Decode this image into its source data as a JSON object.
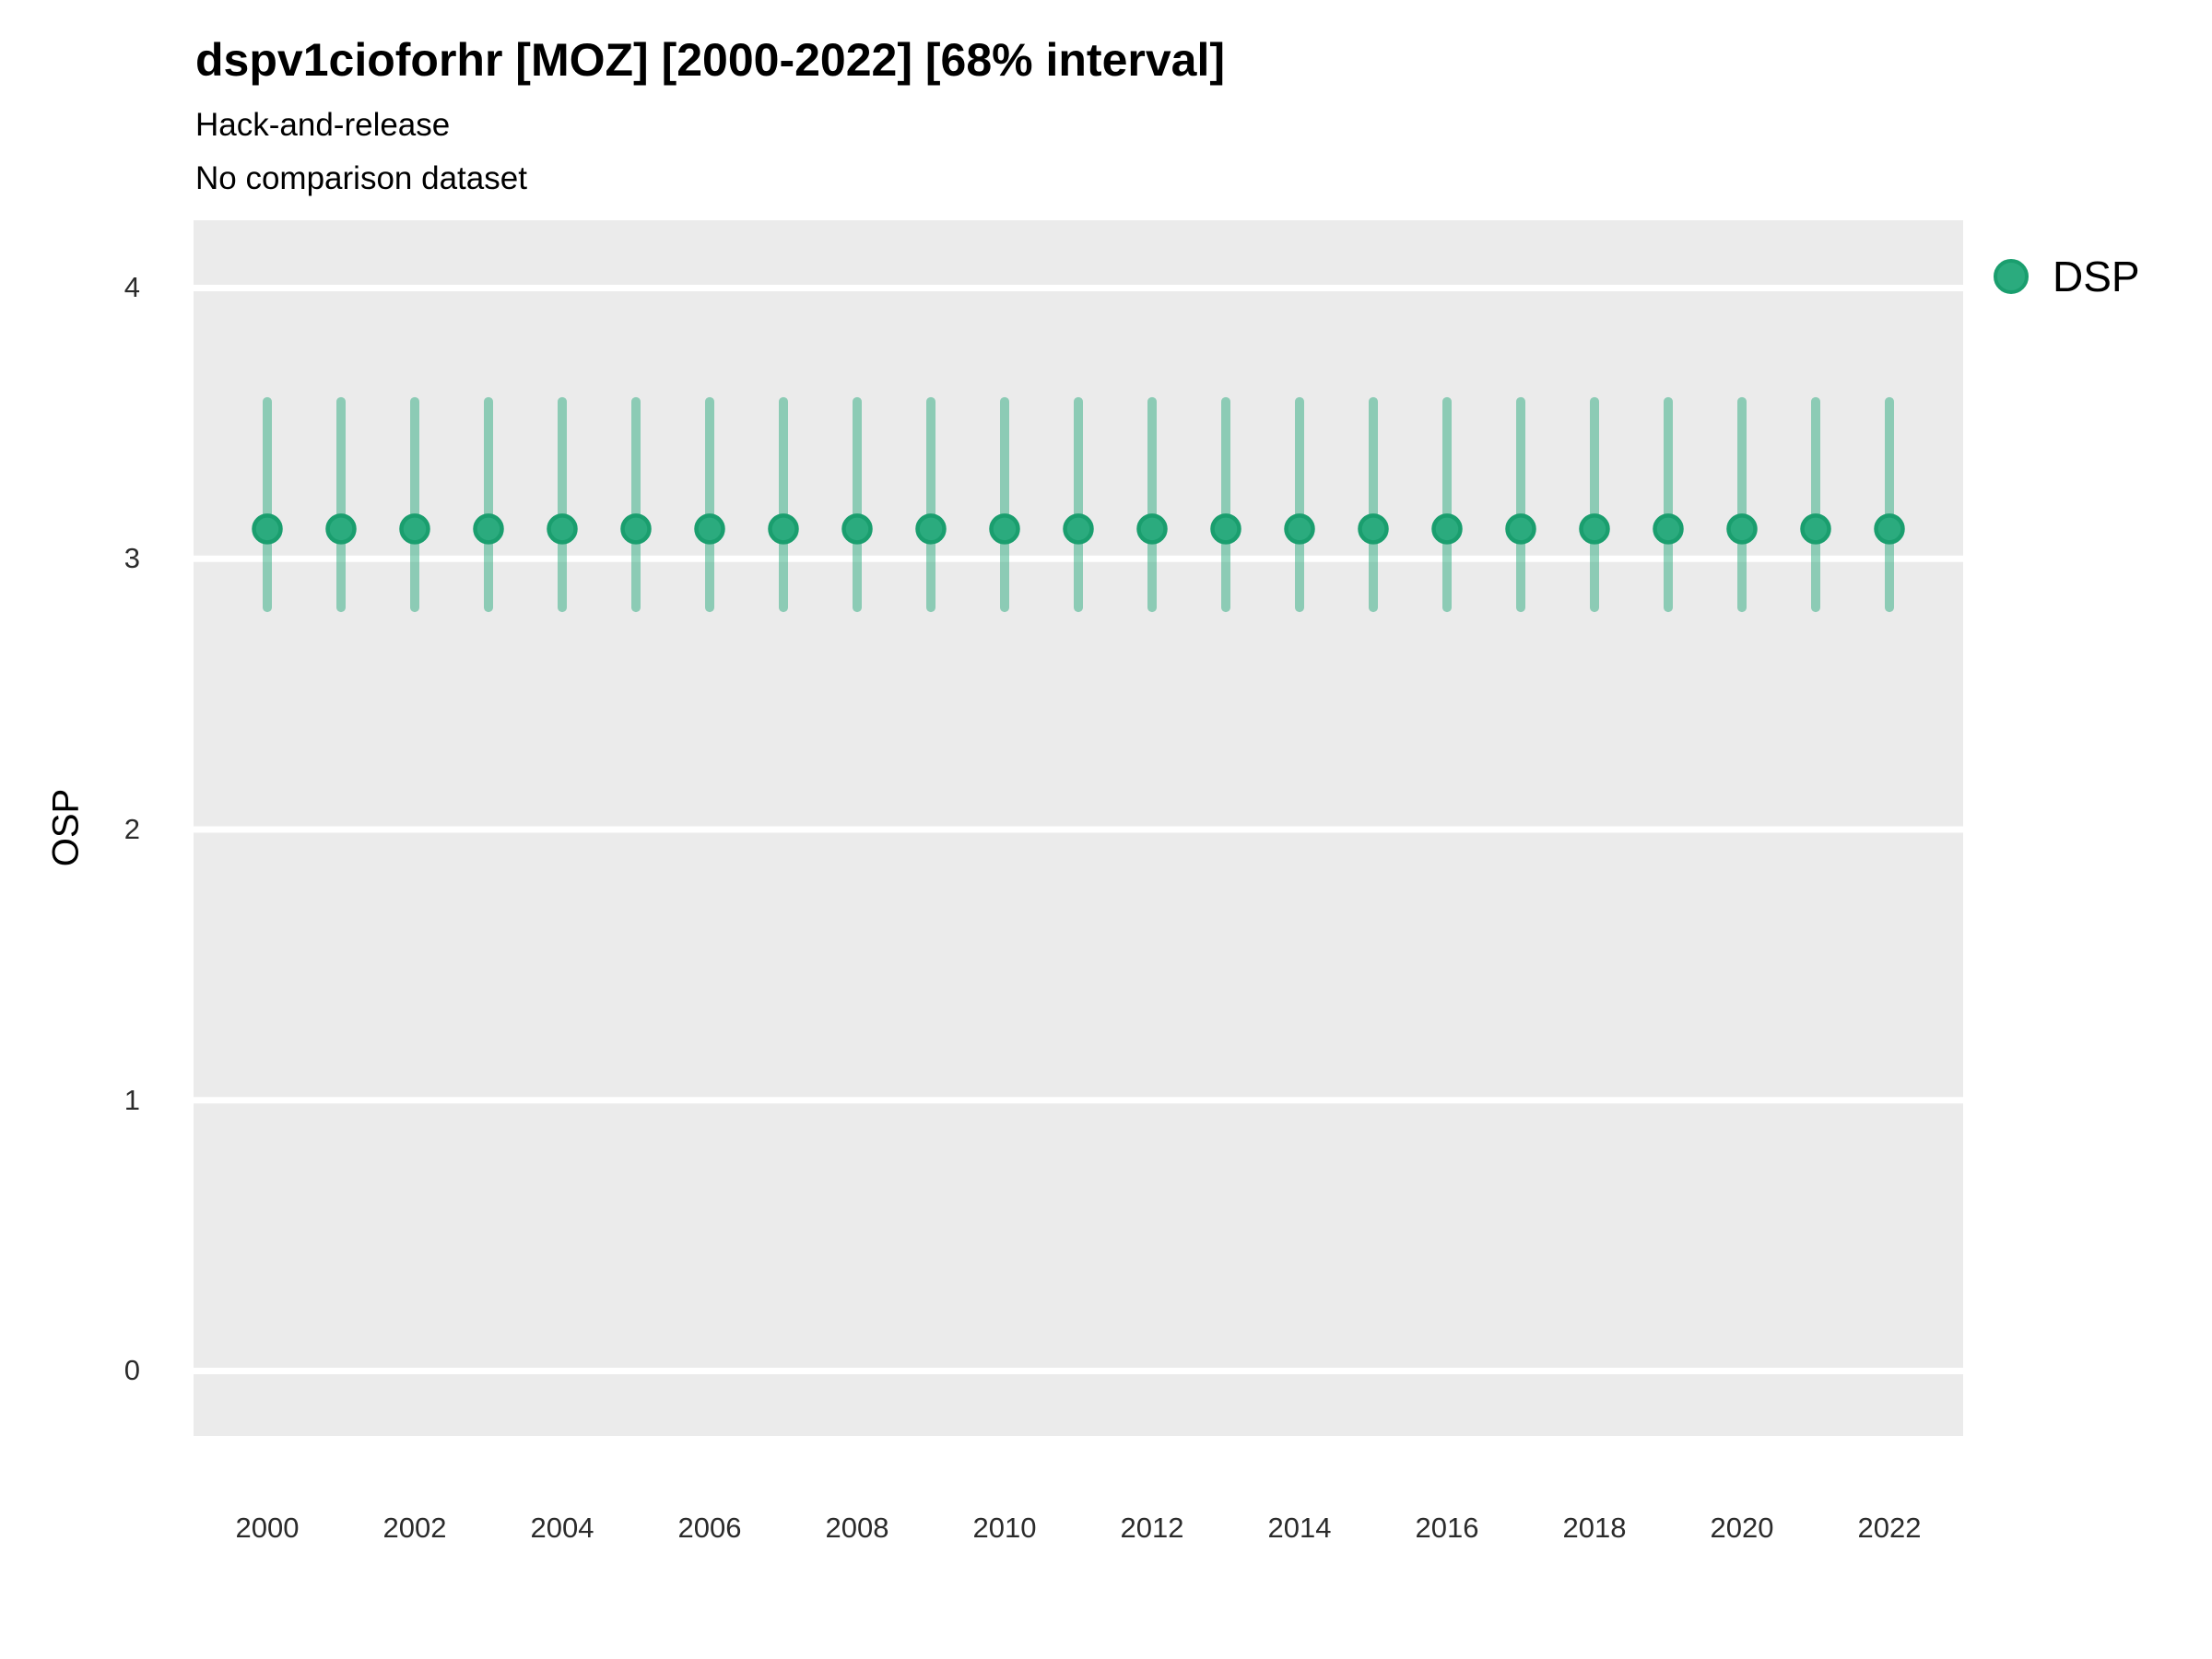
{
  "header": {
    "title": "dspv1cioforhr [MOZ] [2000-2022] [68% interval]",
    "subtitle1": "Hack-and-release",
    "subtitle2": "No comparison dataset"
  },
  "legend": {
    "position": "right-top",
    "items": [
      {
        "label": "DSP",
        "marker": "circle-icon",
        "fill": "#2BAB7E",
        "border": "#1A9E6E"
      }
    ]
  },
  "colors": {
    "panel_bg": "#EBEBEB",
    "gridline": "#FFFFFF",
    "point_fill": "#2BAB7E",
    "point_stroke": "#1A9E6E",
    "interval_stroke": "#2EAC80",
    "interval_opacity": 0.5,
    "tick_text": "#2b2b2b"
  },
  "chart_data": {
    "type": "scatter",
    "title": "dspv1cioforhr [MOZ] [2000-2022] [68% interval]",
    "subtitle": "Hack-and-release",
    "note": "No comparison dataset",
    "interval_level": "68%",
    "xlabel": "",
    "ylabel": "OSP",
    "xlim": [
      1999,
      2023
    ],
    "ylim": [
      -0.24,
      4.25
    ],
    "x_ticks": [
      2000,
      2002,
      2004,
      2006,
      2008,
      2010,
      2012,
      2014,
      2016,
      2018,
      2020,
      2022
    ],
    "y_ticks": [
      0,
      1,
      2,
      3,
      4
    ],
    "grid": "major-horizontal-white-on-gray-panel",
    "legend_position": "right-top",
    "series": [
      {
        "name": "DSP",
        "years": [
          2000,
          2001,
          2002,
          2003,
          2004,
          2005,
          2006,
          2007,
          2008,
          2009,
          2010,
          2011,
          2012,
          2013,
          2014,
          2015,
          2016,
          2017,
          2018,
          2019,
          2020,
          2021,
          2022
        ],
        "point": [
          3.11,
          3.11,
          3.11,
          3.11,
          3.11,
          3.11,
          3.11,
          3.11,
          3.11,
          3.11,
          3.11,
          3.11,
          3.11,
          3.11,
          3.11,
          3.11,
          3.11,
          3.11,
          3.11,
          3.11,
          3.11,
          3.11,
          3.11
        ],
        "lower": [
          2.82,
          2.82,
          2.82,
          2.82,
          2.82,
          2.82,
          2.82,
          2.82,
          2.82,
          2.82,
          2.82,
          2.82,
          2.82,
          2.82,
          2.82,
          2.82,
          2.82,
          2.82,
          2.82,
          2.82,
          2.82,
          2.82,
          2.82
        ],
        "upper": [
          3.58,
          3.58,
          3.58,
          3.58,
          3.58,
          3.58,
          3.58,
          3.58,
          3.58,
          3.58,
          3.58,
          3.58,
          3.58,
          3.58,
          3.58,
          3.58,
          3.58,
          3.58,
          3.58,
          3.58,
          3.58,
          3.58,
          3.58
        ]
      }
    ]
  }
}
